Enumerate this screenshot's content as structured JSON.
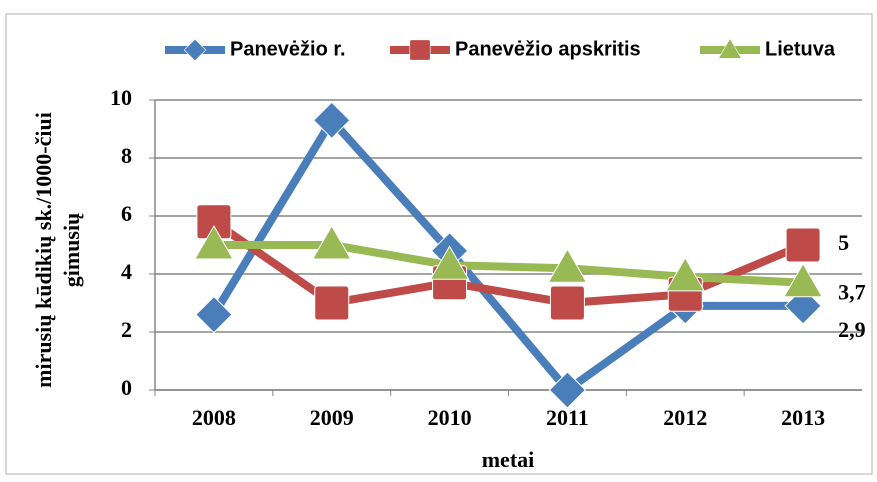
{
  "chart_data": {
    "type": "line",
    "y_label": [
      "mirusių kūdikių sk./1000-čiui",
      "gimusių"
    ],
    "x_label": "metai",
    "categories": [
      "2008",
      "2009",
      "2010",
      "2011",
      "2012",
      "2013"
    ],
    "series": [
      {
        "name": "Panevėžio r.",
        "color": "#4a7ebb",
        "marker": "diamond",
        "values": [
          2.6,
          9.3,
          4.8,
          0,
          2.9,
          2.9
        ],
        "value_labels": [
          null,
          null,
          null,
          null,
          null,
          "2,9"
        ]
      },
      {
        "name": "Panevėžio apskritis",
        "color": "#be4b48",
        "marker": "square",
        "values": [
          5.8,
          3.0,
          3.7,
          3.0,
          3.3,
          5.0
        ],
        "value_labels": [
          null,
          null,
          null,
          null,
          null,
          "5"
        ]
      },
      {
        "name": "Lietuva",
        "color": "#98b954",
        "marker": "triangle",
        "values": [
          5.0,
          5.0,
          4.3,
          4.2,
          3.9,
          3.7
        ],
        "value_labels": [
          null,
          null,
          null,
          null,
          null,
          "3,7"
        ]
      }
    ],
    "ylim": [
      0,
      10
    ],
    "yticks": [
      0,
      2,
      4,
      6,
      8,
      10
    ],
    "grid": true,
    "legend": "top"
  }
}
